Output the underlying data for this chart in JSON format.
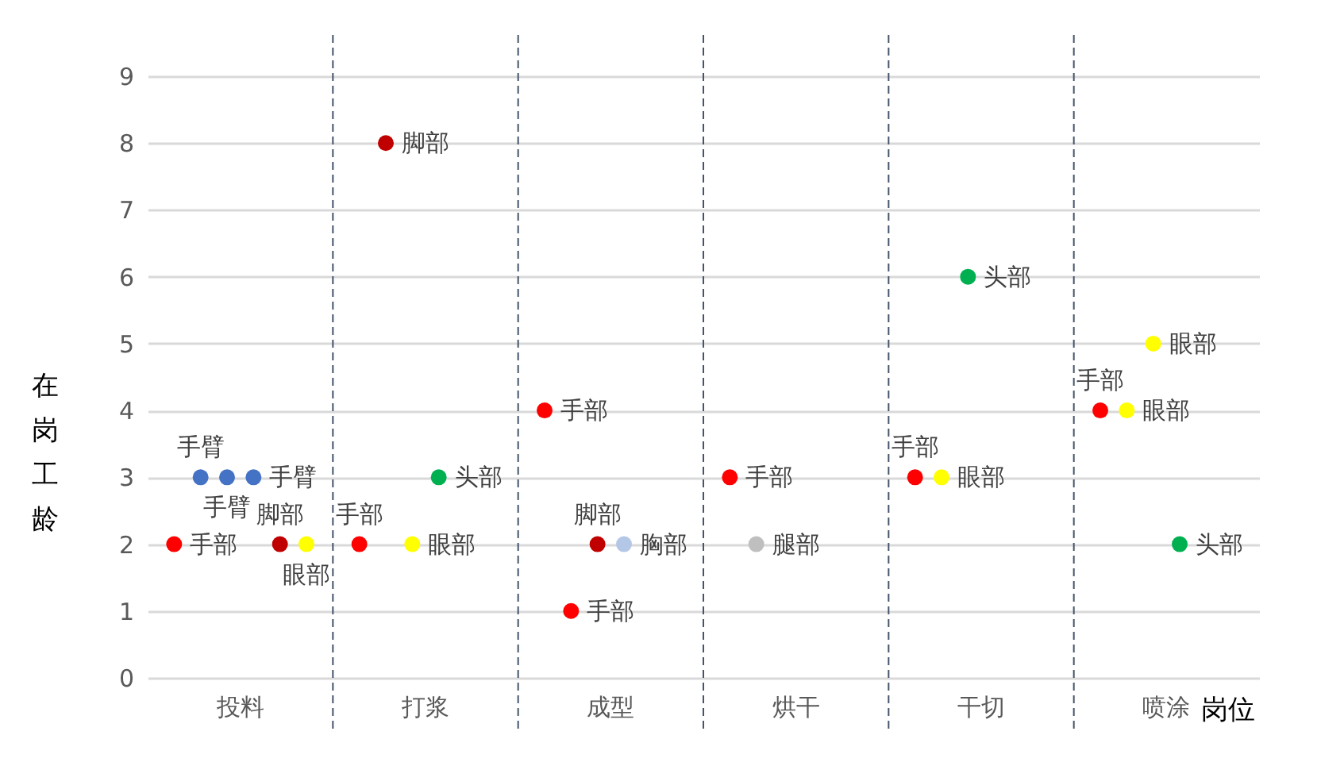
{
  "chart_data": {
    "type": "scatter",
    "xlabel": "岗位",
    "ylabel": "在岗工龄",
    "categories": [
      "投料",
      "打浆",
      "成型",
      "烘干",
      "干切",
      "喷涂"
    ],
    "ylim": [
      0,
      9
    ],
    "yticks": [
      0,
      1,
      2,
      3,
      4,
      5,
      6,
      7,
      8,
      9
    ],
    "grid": true,
    "legend": false,
    "marker": "circle",
    "series": [
      {
        "name": "手部",
        "color": "#ff0000",
        "x": [
          "投料",
          "打浆",
          "成型",
          "成型",
          "烘干",
          "干切",
          "喷涂"
        ],
        "values": [
          2,
          2,
          4,
          1,
          3,
          3,
          4
        ]
      },
      {
        "name": "手臂",
        "color": "#4472c4",
        "x": [
          "投料",
          "投料",
          "投料"
        ],
        "values": [
          3,
          3,
          3
        ]
      },
      {
        "name": "脚部",
        "color": "#c00000",
        "x": [
          "投料",
          "打浆",
          "成型"
        ],
        "values": [
          2,
          8,
          2
        ]
      },
      {
        "name": "眼部",
        "color": "#ffff00",
        "x": [
          "投料",
          "打浆",
          "干切",
          "喷涂",
          "喷涂"
        ],
        "values": [
          2,
          2,
          3,
          4,
          5
        ]
      },
      {
        "name": "头部",
        "color": "#00b050",
        "x": [
          "打浆",
          "干切",
          "喷涂"
        ],
        "values": [
          3,
          6,
          2
        ]
      },
      {
        "name": "胸部",
        "color": "#b4c7e7",
        "x": [
          "成型"
        ],
        "values": [
          2
        ]
      },
      {
        "name": "腿部",
        "color": "#bfbfbf",
        "x": [
          "烘干"
        ],
        "values": [
          2
        ]
      }
    ]
  }
}
